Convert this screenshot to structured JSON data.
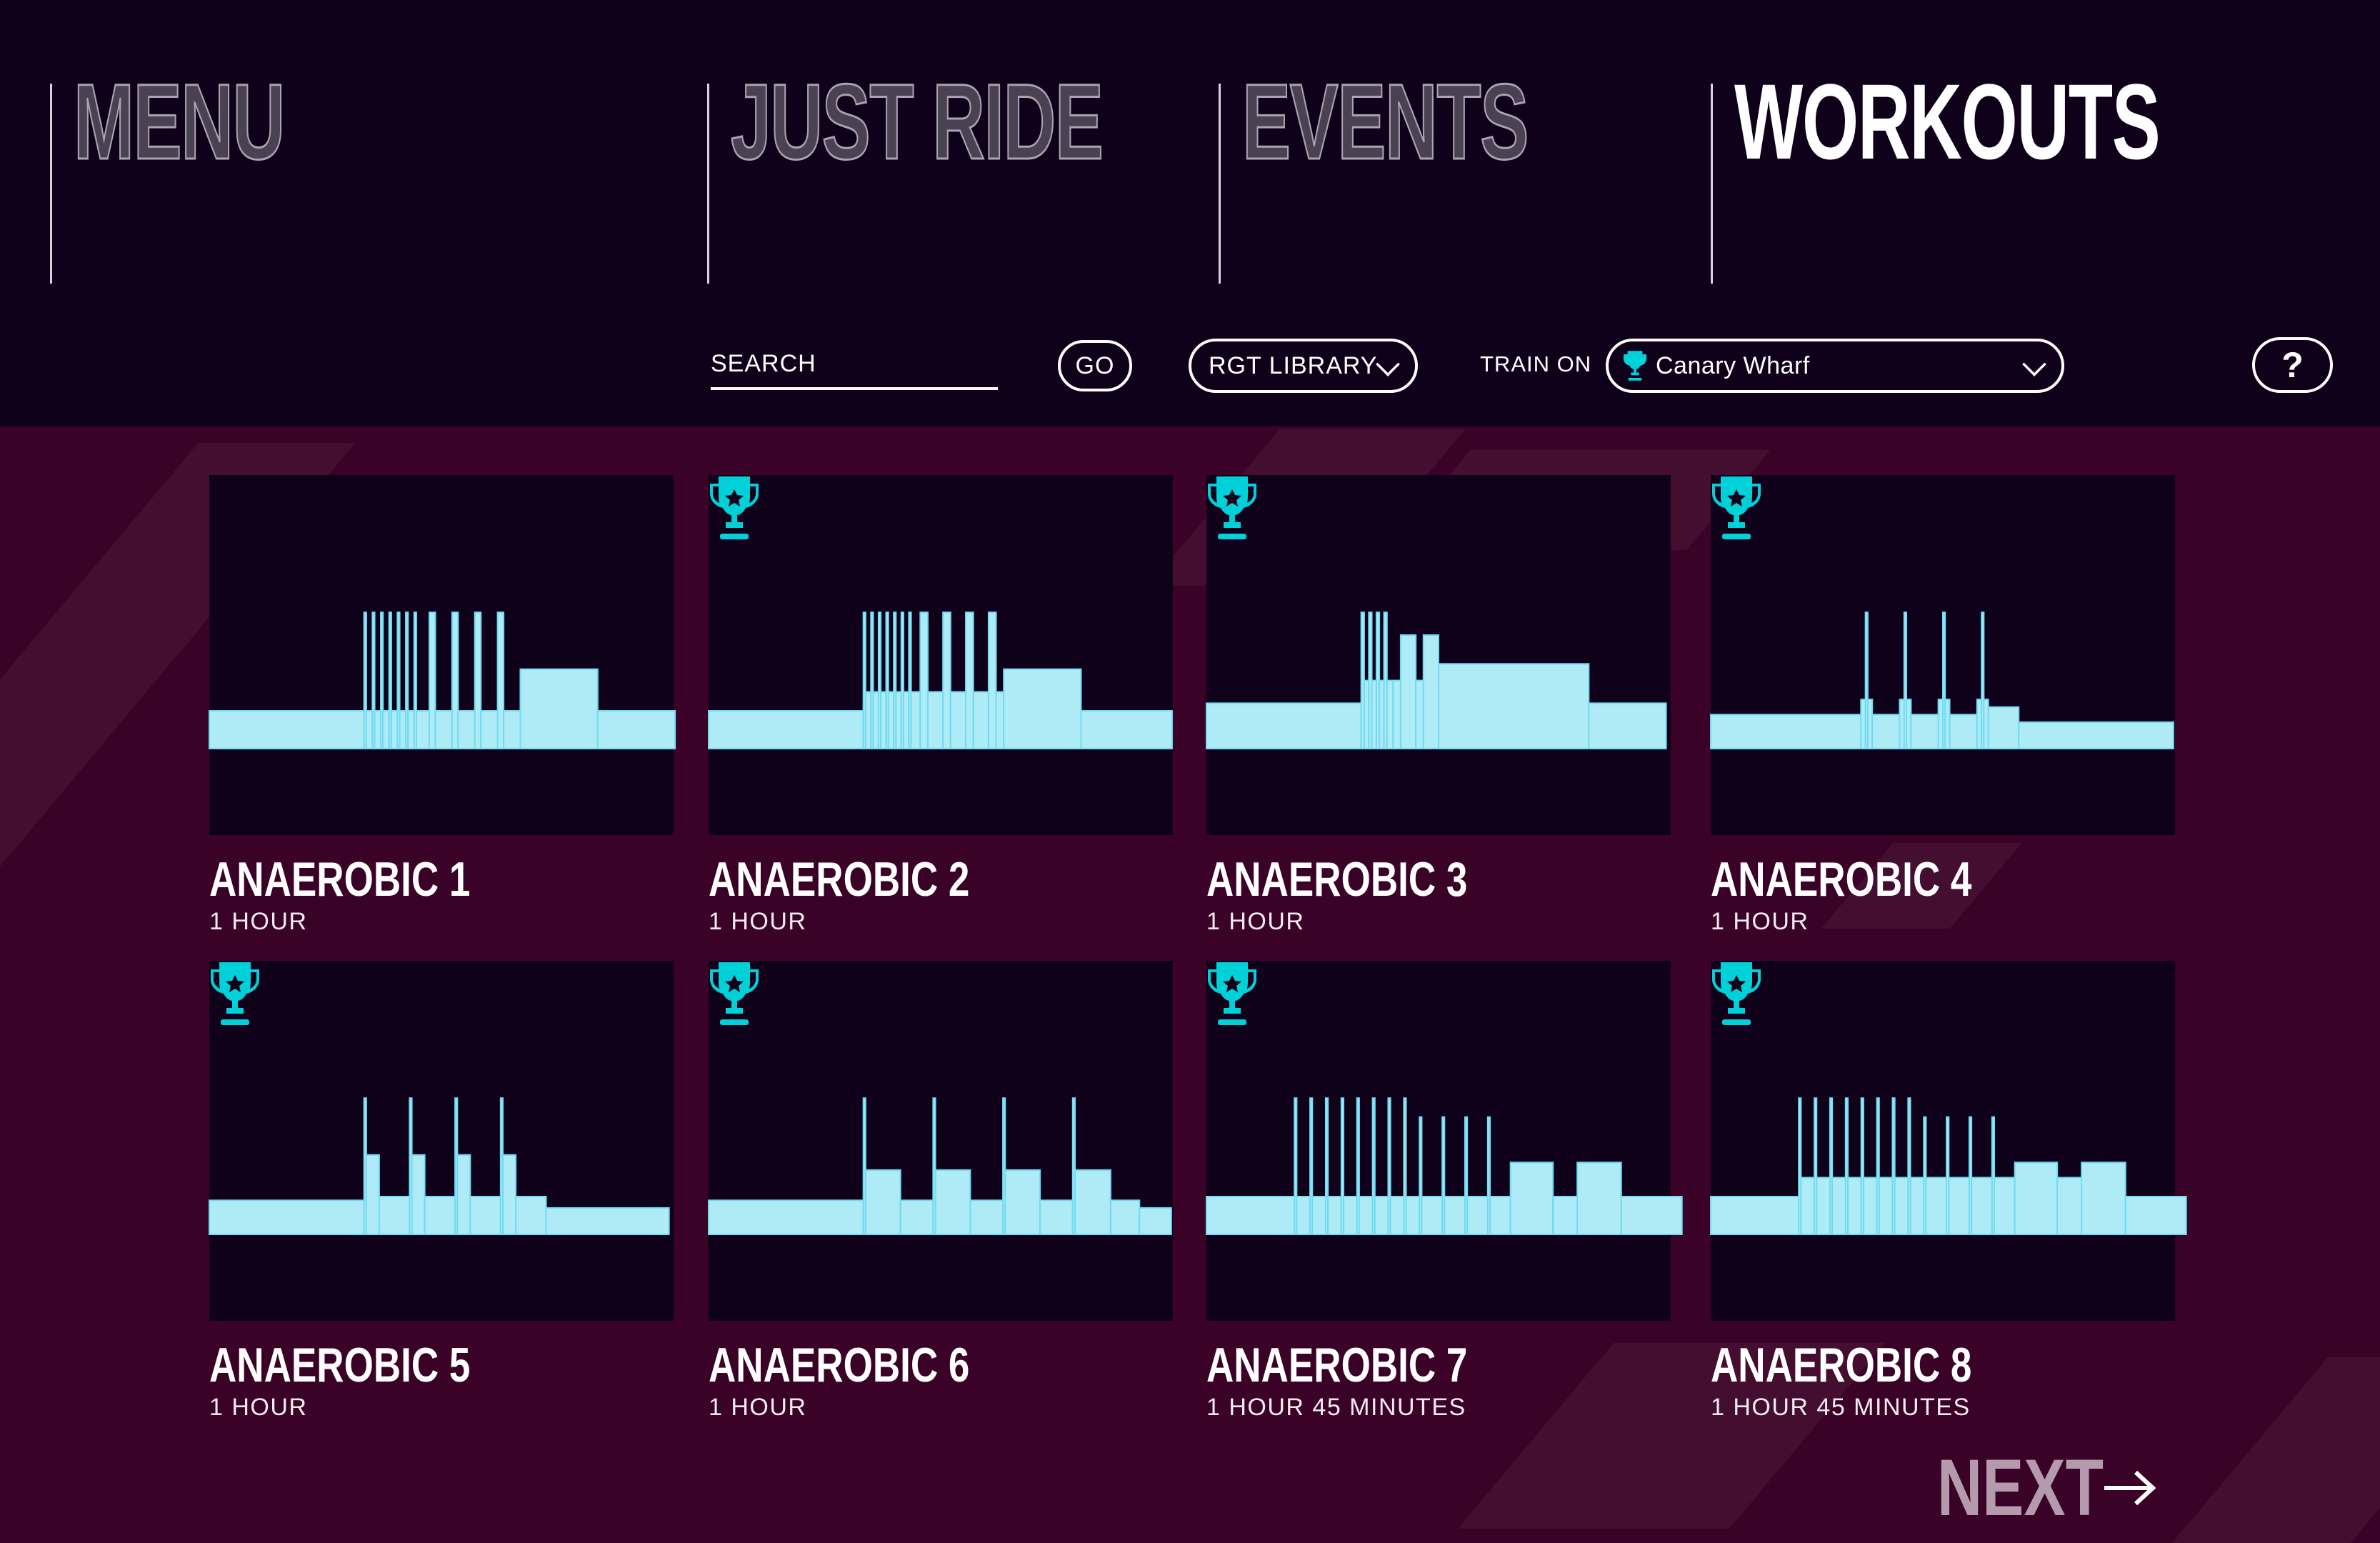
{
  "nav": {
    "menu": "MENU",
    "just_ride": "JUST RIDE",
    "events": "EVENTS",
    "workouts": "WORKOUTS"
  },
  "toolbar": {
    "search_placeholder": "SEARCH",
    "go_label": "GO",
    "library_select": "RGT LIBRARY",
    "train_on_label": "TRAIN ON",
    "course_select": "Canary Wharf",
    "help_label": "?"
  },
  "colors": {
    "accent": "#00d0d8",
    "profile_fill": "#aeebf7",
    "profile_stroke": "#6fdcf0",
    "header_bg": "#10011b",
    "body_bg": "#3a0226"
  },
  "workouts": [
    {
      "title": "ANAEROBIC 1",
      "duration": "1 HOUR",
      "trophy": false,
      "profile": [
        [
          102,
          1
        ],
        [
          1.5,
          3.6
        ],
        [
          4,
          1
        ],
        [
          1.5,
          3.6
        ],
        [
          4,
          1
        ],
        [
          1.5,
          3.6
        ],
        [
          4,
          1
        ],
        [
          1.5,
          3.6
        ],
        [
          4,
          1
        ],
        [
          1.5,
          3.6
        ],
        [
          4,
          1
        ],
        [
          1.5,
          3.6
        ],
        [
          4,
          1
        ],
        [
          1.5,
          3.6
        ],
        [
          8.5,
          1
        ],
        [
          4,
          3.6
        ],
        [
          11,
          1
        ],
        [
          4,
          3.6
        ],
        [
          11,
          1
        ],
        [
          4,
          3.6
        ],
        [
          11,
          1
        ],
        [
          4,
          3.6
        ],
        [
          11,
          1
        ],
        [
          51,
          2.1
        ],
        [
          51,
          1
        ]
      ]
    },
    {
      "title": "ANAEROBIC 2",
      "duration": "1 HOUR",
      "trophy": true,
      "profile": [
        [
          102,
          1
        ],
        [
          1.5,
          3.6
        ],
        [
          3.5,
          1.5
        ],
        [
          1.5,
          3.6
        ],
        [
          3.5,
          1.5
        ],
        [
          1.5,
          3.6
        ],
        [
          3.5,
          1.5
        ],
        [
          1.5,
          3.6
        ],
        [
          3.5,
          1.5
        ],
        [
          1.5,
          3.6
        ],
        [
          3.5,
          1.5
        ],
        [
          1.5,
          3.6
        ],
        [
          3.5,
          1.5
        ],
        [
          1.5,
          3.6
        ],
        [
          6,
          1.5
        ],
        [
          5,
          3.6
        ],
        [
          10,
          1.5
        ],
        [
          5,
          3.6
        ],
        [
          10,
          1.5
        ],
        [
          5,
          3.6
        ],
        [
          10,
          1.5
        ],
        [
          5,
          3.6
        ],
        [
          5,
          1.5
        ],
        [
          51,
          2.1
        ],
        [
          60,
          1
        ]
      ]
    },
    {
      "title": "ANAEROBIC 3",
      "duration": "1 HOUR",
      "trophy": true,
      "profile": [
        [
          102,
          1.2
        ],
        [
          2,
          3.6
        ],
        [
          3,
          1.8
        ],
        [
          2,
          3.6
        ],
        [
          3,
          1.8
        ],
        [
          2,
          3.6
        ],
        [
          3,
          1.8
        ],
        [
          2,
          3.6
        ],
        [
          4,
          1.8
        ],
        [
          5,
          1.8
        ],
        [
          10,
          3
        ],
        [
          5,
          1.8
        ],
        [
          10,
          3
        ],
        [
          99,
          2.24
        ],
        [
          51,
          1.2
        ]
      ]
    },
    {
      "title": "ANAEROBIC 4",
      "duration": "1 HOUR",
      "trophy": true,
      "profile": [
        [
          99,
          0.9
        ],
        [
          3,
          1.3
        ],
        [
          1.5,
          3.6
        ],
        [
          3,
          1.3
        ],
        [
          18,
          0.9
        ],
        [
          3,
          1.3
        ],
        [
          1.5,
          3.6
        ],
        [
          3,
          1.3
        ],
        [
          18,
          0.9
        ],
        [
          3,
          1.3
        ],
        [
          1.5,
          3.6
        ],
        [
          3,
          1.3
        ],
        [
          18,
          0.9
        ],
        [
          3,
          1.3
        ],
        [
          1.5,
          3.6
        ],
        [
          3,
          1.3
        ],
        [
          20,
          1.1
        ],
        [
          102,
          0.7
        ]
      ]
    },
    {
      "title": "ANAEROBIC 5",
      "duration": "1 HOUR",
      "trophy": true,
      "profile": [
        [
          102,
          0.9
        ],
        [
          1.5,
          3.6
        ],
        [
          8.5,
          2.1
        ],
        [
          20,
          1
        ],
        [
          1.5,
          3.6
        ],
        [
          8.5,
          2.1
        ],
        [
          20,
          1
        ],
        [
          1.5,
          3.6
        ],
        [
          8.5,
          2.1
        ],
        [
          20,
          1
        ],
        [
          1.5,
          3.6
        ],
        [
          8.5,
          2.1
        ],
        [
          20,
          1
        ],
        [
          81,
          0.7
        ]
      ]
    },
    {
      "title": "ANAEROBIC 6",
      "duration": "1 HOUR",
      "trophy": true,
      "profile": [
        [
          102,
          0.9
        ],
        [
          1.5,
          3.6
        ],
        [
          23,
          1.7
        ],
        [
          21.5,
          0.9
        ],
        [
          1.5,
          3.6
        ],
        [
          23,
          1.7
        ],
        [
          21.5,
          0.9
        ],
        [
          1.5,
          3.6
        ],
        [
          23,
          1.7
        ],
        [
          21.5,
          0.9
        ],
        [
          1.5,
          3.6
        ],
        [
          23.5,
          1.7
        ],
        [
          19,
          0.9
        ],
        [
          21,
          0.7
        ]
      ]
    },
    {
      "title": "ANAEROBIC 7",
      "duration": "1 HOUR 45 MINUTES",
      "trophy": true,
      "profile": [
        [
          58,
          1
        ],
        [
          1.5,
          3.6
        ],
        [
          8.8,
          1
        ],
        [
          1.5,
          3.6
        ],
        [
          8.8,
          1
        ],
        [
          1.5,
          3.6
        ],
        [
          8.8,
          1
        ],
        [
          1.5,
          3.6
        ],
        [
          8.8,
          1
        ],
        [
          1.5,
          3.6
        ],
        [
          8.8,
          1
        ],
        [
          1.5,
          3.6
        ],
        [
          8.8,
          1
        ],
        [
          1.5,
          3.6
        ],
        [
          8.8,
          1
        ],
        [
          1.5,
          3.6
        ],
        [
          8.8,
          1
        ],
        [
          1.5,
          3.1
        ],
        [
          13.5,
          1
        ],
        [
          1.5,
          3.1
        ],
        [
          13.5,
          1
        ],
        [
          1.5,
          3.1
        ],
        [
          13.5,
          1
        ],
        [
          1.5,
          3.1
        ],
        [
          13.5,
          1
        ],
        [
          28,
          1.9
        ],
        [
          16,
          1
        ],
        [
          29,
          1.9
        ],
        [
          40,
          1
        ]
      ]
    },
    {
      "title": "ANAEROBIC 8",
      "duration": "1 HOUR 45 MINUTES",
      "trophy": true,
      "profile": [
        [
          58,
          1
        ],
        [
          1.5,
          3.6
        ],
        [
          8.8,
          1.5
        ],
        [
          1.5,
          3.6
        ],
        [
          8.8,
          1.5
        ],
        [
          1.5,
          3.6
        ],
        [
          8.8,
          1.5
        ],
        [
          1.5,
          3.6
        ],
        [
          8.8,
          1.5
        ],
        [
          1.5,
          3.6
        ],
        [
          8.8,
          1.5
        ],
        [
          1.5,
          3.6
        ],
        [
          8.8,
          1.5
        ],
        [
          1.5,
          3.6
        ],
        [
          8.8,
          1.5
        ],
        [
          1.5,
          3.6
        ],
        [
          8.8,
          1.5
        ],
        [
          1.5,
          3.1
        ],
        [
          13.5,
          1.5
        ],
        [
          1.5,
          3.1
        ],
        [
          13.5,
          1.5
        ],
        [
          1.5,
          3.1
        ],
        [
          13.5,
          1.5
        ],
        [
          1.5,
          3.1
        ],
        [
          13.5,
          1.5
        ],
        [
          28,
          1.9
        ],
        [
          16,
          1.5
        ],
        [
          29,
          1.9
        ],
        [
          40,
          1
        ]
      ]
    }
  ],
  "pagination": {
    "next_label": "NEXT"
  }
}
